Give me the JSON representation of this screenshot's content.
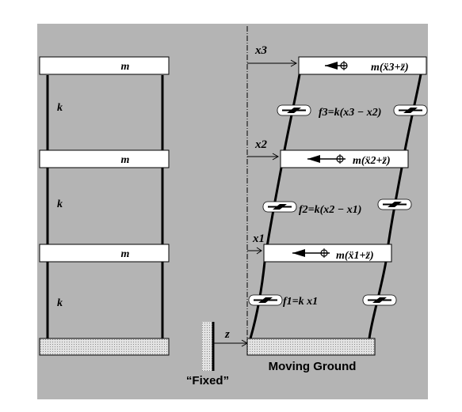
{
  "left_frame": {
    "floor_labels": [
      "m",
      "m",
      "m"
    ],
    "story_labels": [
      "k",
      "k",
      "k"
    ]
  },
  "right_frame": {
    "displacement_labels": [
      "x3",
      "x2",
      "x1"
    ],
    "inertia_labels": [
      "m(ẍ3+z̈)",
      "m(ẍ2+z̈)",
      "m(ẍ1+z̈)"
    ],
    "spring_forces": [
      "f3=k(x3 − x2)",
      "f2=k(x2 − x1)",
      "f1=k x1"
    ],
    "ground_displacement_label": "z",
    "ground_label": "Moving Ground",
    "fixed_label": "“Fixed”"
  },
  "colors": {
    "background": "#b4b4b4",
    "slab": "#ffffff",
    "line": "#000000",
    "ground_hatch": "#d8d8d8"
  }
}
